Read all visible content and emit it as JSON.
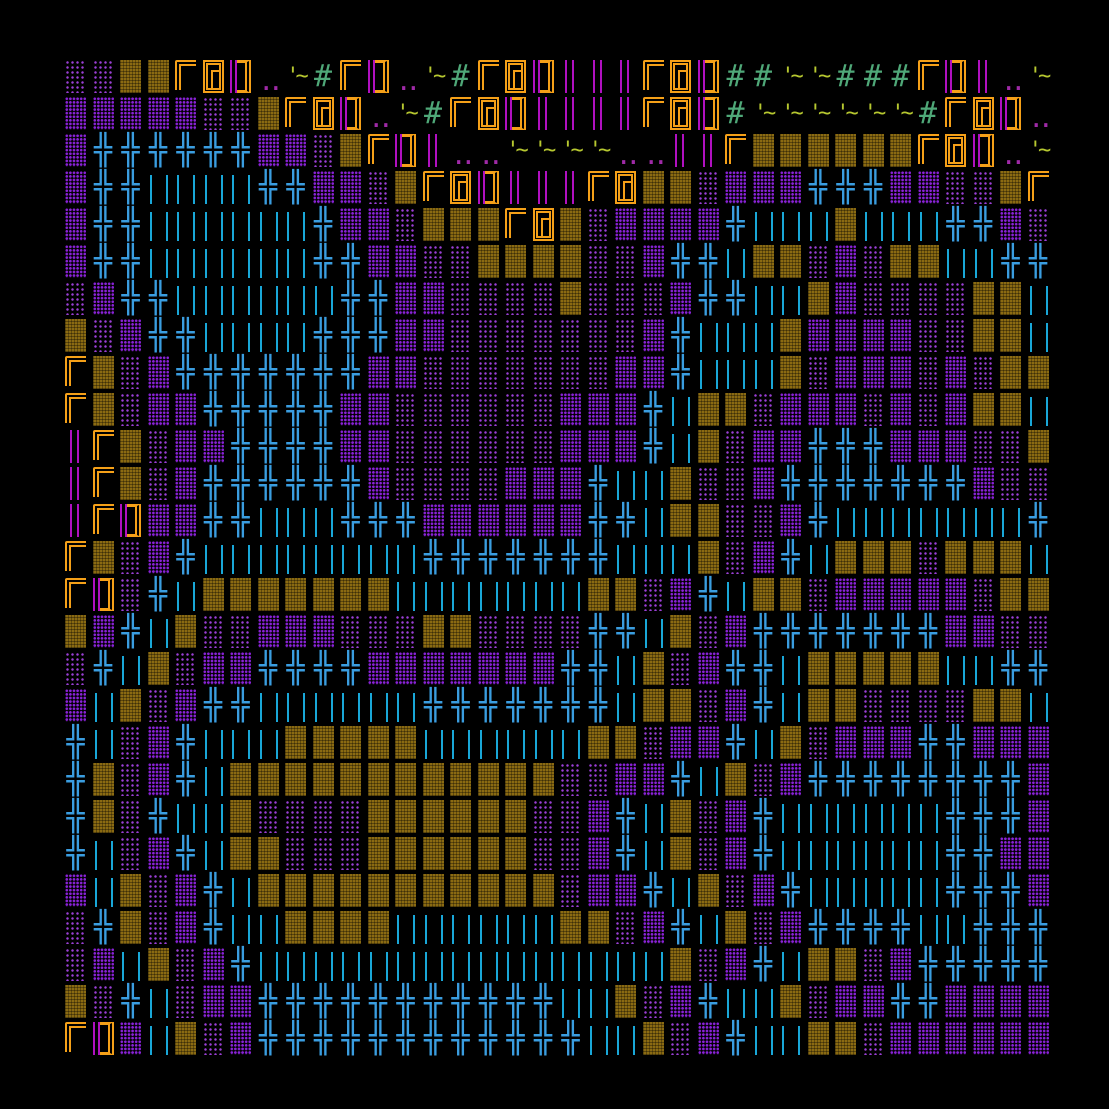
{
  "legend": {
    "d": {
      "name": "floor-sparse-dots",
      "color": "#9b3fd6",
      "cls": "t-d"
    },
    "D": {
      "name": "floor-dense-dots",
      "color": "#8a22d8",
      "cls": "t-D"
    },
    "B": {
      "name": "brick-wall",
      "color": "#8a6a12",
      "cls": "t-B"
    },
    "F": {
      "name": "wall-corner-top-left",
      "color": "#f5a018",
      "cls": "t-F"
    },
    "G": {
      "name": "wall-block",
      "color": "#f5a018",
      "cls": "t-G"
    },
    "J": {
      "name": "wall-corner-bottom-right",
      "color": "#f5a018",
      "cls": "t-J"
    },
    "+": {
      "name": "cross-junction",
      "color": "#3a9de0",
      "cls": "t-plus",
      "glyph": "╬"
    },
    "|": {
      "name": "double-bar",
      "color": "#19a7d8",
      "cls": "t-bars"
    },
    "#": {
      "name": "hash-grass",
      "color": "#4fa878",
      "cls": "t-hash",
      "glyph": "#"
    },
    "~": {
      "name": "water-ripple",
      "color": "#b7c830",
      "cls": "t-water",
      "glyph": "'~"
    },
    ".": {
      "name": "rubble-dots",
      "color": "#a02aa8",
      "cls": "t-dots",
      "glyph": ".."
    },
    "i": {
      "name": "magenta-bars",
      "color": "#b010c0",
      "cls": "t-ibar"
    }
  },
  "rows": [
    "ddBBFGJ.~#FJ.~#FGJiiiFGJ##~~###FJi.~",
    "DDDDDddBFGJ.~#FGJiiiiFGJ#~~~~~~#FGJ.",
    "D++++++DDdBFJi..~~~~..iiFBBBBBBFGJ.~",
    "D++||||++DDdBFGJiiiFGBBdDDD+++DDddBF",
    "D++||||||+DDdBBBFGBdDDDD+|||B|||++Dd",
    "D++||||||++DDddBBBBddD++|BBdDdBB||++",
    "dD++||||||++DDddddBdddD++||BDddddBB|",
    "BdD++||||+++DDdddddddD+|||BDDDDddBB|",
    "FBdD+++++++DDdddddddDD+|||BdDDDdDdBB",
    "FBdDD+++++DDddddddDDD+|BBdDDDdDdDBB|",
    "iFBdDD++++DDddddddDDD+|BdDD+++DDDddB",
    "iFBdD++++++DddddDDD+||BddD+++++++Ddd",
    "iFJDD++|||+++DDDDDD++|BBddD+|||||||+",
    "FBdD+||||||||+++++++|||BdD+|BBBdBBB|",
    "FJd+|BBBBBBB|||||||BBdD+|BBdDDDDDdBB",
    "BD+|BddDDDdddBBdddd++|BdD+++++++DDdd",
    "d+|BdDD++++DDDDDDD++|BdD++|BBBBB||++",
    "D|BdD++||||||+++++++|BBdD+|BBddddBB|",
    "+|dD+|||BBBBB||||||BBdDD+|BdDDD++DDD",
    "+BdD+|BBBBBBBBBBBBddDD+|BdD++++++++D",
    "+Bd+||BddddBBBBBBddD+|BdD+||||||+++D",
    "+|dD+|BBdddBBBBBBddD+|BdD+||||||++DD",
    "D|BdD+|BBBBBBBBBBBdDD+|BdD+|||||+++D",
    "d+BdD+||BBBB||||||BBdD+|BdD++++||+++",
    "dD|BdD+|||||||||||||||BdD+|BBdD+++++",
    "Bd+|dDD+++++++++++||BdD+||BdDD++DDDD",
    "FJD|BdD++++++++++++||BdD+||BBdDDDDDD"
  ]
}
